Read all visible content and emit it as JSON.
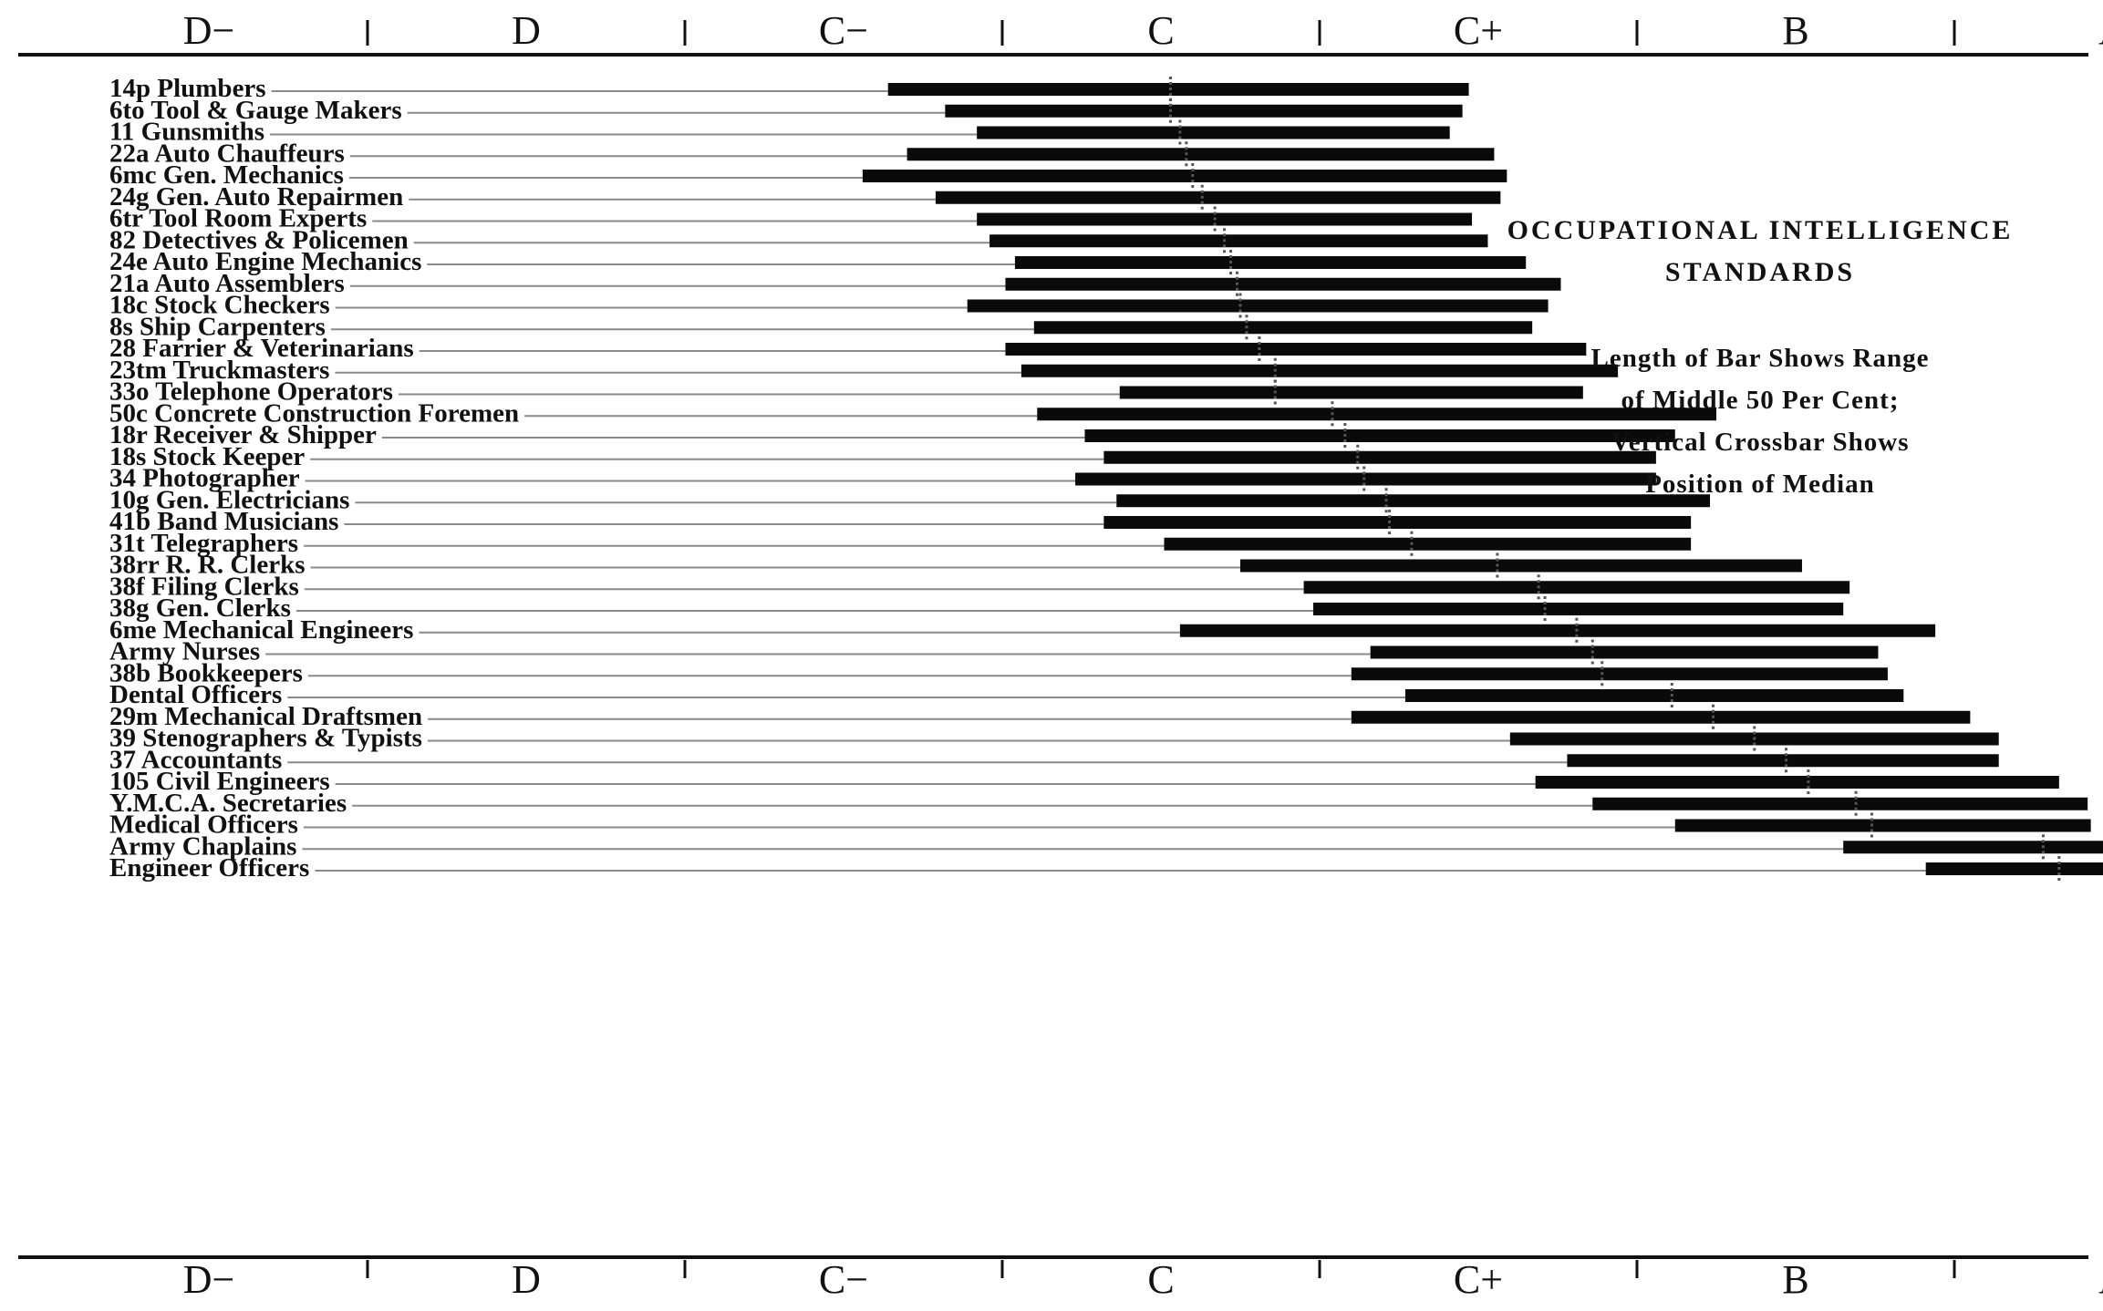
{
  "chart_data": {
    "type": "bar",
    "orientation": "horizontal",
    "title": "OCCUPATIONAL INTELLIGENCE STANDARDS",
    "notes": [
      "Length of Bar Shows Range",
      "of Middle 50 Per Cent;",
      "Vertical Crossbar Shows",
      "Position of Median"
    ],
    "grades": [
      "D−",
      "D",
      "C−",
      "C",
      "C+",
      "B",
      "A"
    ],
    "rows": [
      {
        "label": "14p Plumbers",
        "start": 2.64,
        "end": 4.47,
        "median": 3.53
      },
      {
        "label": "6to Tool & Gauge Makers",
        "start": 2.82,
        "end": 4.45,
        "median": 3.53
      },
      {
        "label": "11 Gunsmiths",
        "start": 2.92,
        "end": 4.41,
        "median": 3.56
      },
      {
        "label": "22a Auto Chauffeurs",
        "start": 2.7,
        "end": 4.55,
        "median": 3.58
      },
      {
        "label": "6mc Gen. Mechanics",
        "start": 2.56,
        "end": 4.59,
        "median": 3.6
      },
      {
        "label": "24g Gen. Auto Repairmen",
        "start": 2.79,
        "end": 4.57,
        "median": 3.63
      },
      {
        "label": "6tr Tool Room Experts",
        "start": 2.92,
        "end": 4.48,
        "median": 3.67
      },
      {
        "label": "82 Detectives & Policemen",
        "start": 2.96,
        "end": 4.53,
        "median": 3.7
      },
      {
        "label": "24e Auto Engine Mechanics",
        "start": 3.04,
        "end": 4.65,
        "median": 3.72
      },
      {
        "label": "21a Auto Assemblers",
        "start": 3.01,
        "end": 4.76,
        "median": 3.74
      },
      {
        "label": "18c Stock Checkers",
        "start": 2.89,
        "end": 4.72,
        "median": 3.75
      },
      {
        "label": "8s Ship Carpenters",
        "start": 3.1,
        "end": 4.67,
        "median": 3.77
      },
      {
        "label": "28 Farrier & Veterinarians",
        "start": 3.01,
        "end": 4.84,
        "median": 3.81
      },
      {
        "label": "23tm Truckmasters",
        "start": 3.06,
        "end": 4.94,
        "median": 3.86
      },
      {
        "label": "33o Telephone Operators",
        "start": 3.37,
        "end": 4.83,
        "median": 3.86
      },
      {
        "label": "50c Concrete Construction Foremen",
        "start": 3.11,
        "end": 5.25,
        "median": 4.04
      },
      {
        "label": "18r Receiver & Shipper",
        "start": 3.26,
        "end": 5.12,
        "median": 4.08
      },
      {
        "label": "18s Stock Keeper",
        "start": 3.32,
        "end": 5.06,
        "median": 4.12
      },
      {
        "label": "34 Photographer",
        "start": 3.23,
        "end": 5.06,
        "median": 4.14
      },
      {
        "label": "10g Gen. Electricians",
        "start": 3.36,
        "end": 5.23,
        "median": 4.21
      },
      {
        "label": "41b Band Musicians",
        "start": 3.32,
        "end": 5.17,
        "median": 4.22
      },
      {
        "label": "31t Telegraphers",
        "start": 3.51,
        "end": 5.17,
        "median": 4.29
      },
      {
        "label": "38rr R. R. Clerks",
        "start": 3.75,
        "end": 5.52,
        "median": 4.56
      },
      {
        "label": "38f Filing Clerks",
        "start": 3.95,
        "end": 5.67,
        "median": 4.69
      },
      {
        "label": "38g Gen. Clerks",
        "start": 3.98,
        "end": 5.65,
        "median": 4.71
      },
      {
        "label": "6me Mechanical Engineers",
        "start": 3.56,
        "end": 5.94,
        "median": 4.81
      },
      {
        "label": "Army Nurses",
        "start": 4.16,
        "end": 5.76,
        "median": 4.86
      },
      {
        "label": "38b Bookkeepers",
        "start": 4.1,
        "end": 5.79,
        "median": 4.89
      },
      {
        "label": "Dental Officers",
        "start": 4.27,
        "end": 5.84,
        "median": 5.11
      },
      {
        "label": "29m Mechanical Draftsmen",
        "start": 4.1,
        "end": 6.05,
        "median": 5.24
      },
      {
        "label": "39 Stenographers & Typists",
        "start": 4.6,
        "end": 6.14,
        "median": 5.37
      },
      {
        "label": "37 Accountants",
        "start": 4.78,
        "end": 6.14,
        "median": 5.47
      },
      {
        "label": "105 Civil Engineers",
        "start": 4.68,
        "end": 6.33,
        "median": 5.54
      },
      {
        "label": "Y.M.C.A. Secretaries",
        "start": 4.86,
        "end": 6.42,
        "median": 5.69
      },
      {
        "label": "Medical Officers",
        "start": 5.12,
        "end": 6.43,
        "median": 5.74
      },
      {
        "label": "Army Chaplains",
        "start": 5.65,
        "end": 6.66,
        "median": 6.28
      },
      {
        "label": "Engineer Officers",
        "start": 5.91,
        "end": 6.69,
        "median": 6.33
      }
    ]
  }
}
